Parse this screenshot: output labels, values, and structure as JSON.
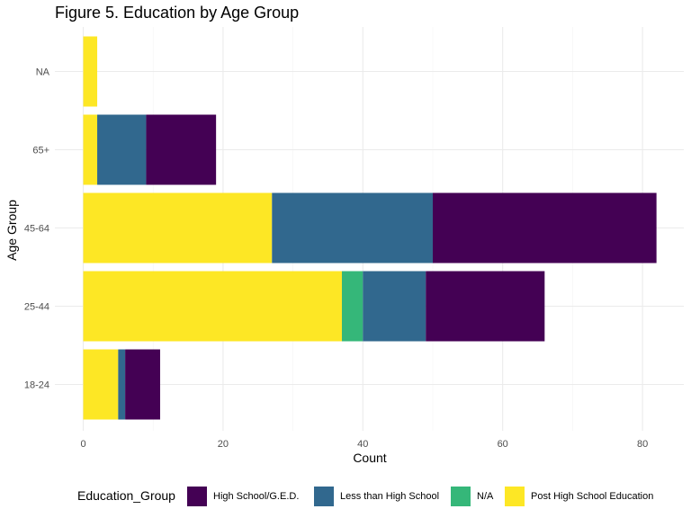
{
  "chart_data": {
    "type": "bar",
    "orientation": "horizontal",
    "stacked": true,
    "title": "Figure 5. Education by Age Group",
    "xlabel": "Count",
    "ylabel": "Age Group",
    "categories": [
      "18-24",
      "25-44",
      "45-64",
      "65+",
      "NA"
    ],
    "xlim": [
      0,
      82
    ],
    "xticks": [
      0,
      20,
      40,
      60,
      80
    ],
    "grid": true,
    "legend": {
      "title": "Education_Group",
      "position": "bottom"
    },
    "series": [
      {
        "name": "High School/G.E.D.",
        "color": "#440154",
        "values": [
          5,
          17,
          32,
          10,
          0
        ]
      },
      {
        "name": "Less than High School",
        "color": "#31688E",
        "values": [
          1,
          9,
          23,
          7,
          0
        ]
      },
      {
        "name": "N/A",
        "color": "#35B779",
        "values": [
          0,
          3,
          0,
          0,
          0
        ]
      },
      {
        "name": "Post High School Education",
        "color": "#FDE725",
        "values": [
          5,
          37,
          27,
          2,
          2
        ]
      }
    ]
  }
}
